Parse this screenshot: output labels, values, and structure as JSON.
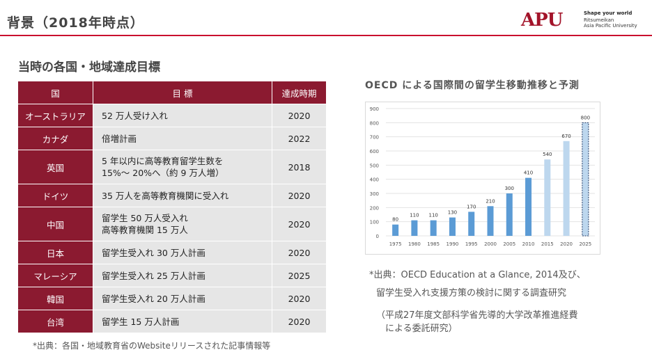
{
  "header": {
    "title": "背景（2018年時点）"
  },
  "logo": {
    "mark": "APU",
    "tagline": "Shape your world",
    "line1": "Ritsumeikan",
    "line2": "Asia Pacific University"
  },
  "colors": {
    "accent": "#8b1a30",
    "rule": "#c9102e",
    "bar_actual": "#5b9bd5",
    "bar_forecast": "#bdd7ee"
  },
  "section_title": "当時の各国・地域達成目標",
  "table": {
    "headers": [
      "国",
      "目 標",
      "達成時期"
    ],
    "rows": [
      {
        "country": "オーストラリア",
        "target": [
          "52 万人受け入れ"
        ],
        "year": "2020"
      },
      {
        "country": "カナダ",
        "target": [
          "倍増計画"
        ],
        "year": "2022"
      },
      {
        "country": "英国",
        "target": [
          "5 年以内に高等教育留学生数を",
          "15%～ 20%へ（約 9 万人増）"
        ],
        "year": "2018"
      },
      {
        "country": "ドイツ",
        "target": [
          "35 万人を高等教育機関に受入れ"
        ],
        "year": "2020"
      },
      {
        "country": "中国",
        "target": [
          "留学生 50 万人受入れ",
          "高等教育機関 15 万人"
        ],
        "year": "2020"
      },
      {
        "country": "日本",
        "target": [
          "留学生受入れ 30 万人計画"
        ],
        "year": "2020"
      },
      {
        "country": "マレーシア",
        "target": [
          "留学生受入れ 25 万人計画"
        ],
        "year": "2025"
      },
      {
        "country": "韓国",
        "target": [
          "留学生受入れ 20 万人計画"
        ],
        "year": "2020"
      },
      {
        "country": "台湾",
        "target": [
          "留学生 15 万人計画"
        ],
        "year": "2020"
      }
    ]
  },
  "table_note": "*出典：各国・地域教育省のWebsiteリリースされた記事情報等",
  "chart_title": "OECD による国際間の留学生移動推移と予測",
  "chart_data": {
    "type": "bar",
    "categories": [
      "1975",
      "1980",
      "1985",
      "1990",
      "1995",
      "2000",
      "2005",
      "2010",
      "2015",
      "2020",
      "2025"
    ],
    "values": [
      80,
      110,
      110,
      130,
      170,
      210,
      300,
      410,
      540,
      670,
      800
    ],
    "ylim": [
      0,
      900
    ],
    "yticks": [
      0,
      100,
      200,
      300,
      400,
      500,
      600,
      700,
      800,
      900
    ],
    "grid": true,
    "forecast_from_index": 8
  },
  "source": {
    "line1": "*出典：OECD Education at a Glance, 2014及び、",
    "line2": "留学生受入れ支援方策の検討に関する調査研究",
    "line3": "（平成27年度文部科学省先導的大学改革推進経費",
    "line4": "による委託研究）"
  }
}
